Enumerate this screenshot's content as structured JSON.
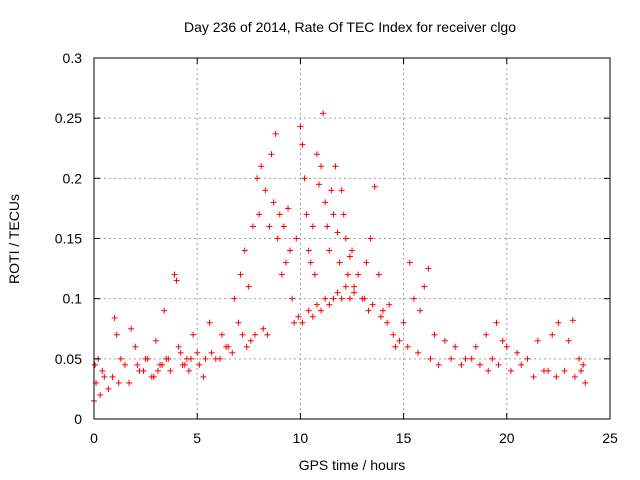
{
  "chart_data": {
    "type": "scatter",
    "title": "Day 236 of 2014, Rate Of TEC Index for receiver clgo",
    "xlabel": "GPS time / hours",
    "ylabel": "ROTI / TECUs",
    "xlim": [
      0,
      25
    ],
    "ylim": [
      0,
      0.3
    ],
    "grid": true,
    "marker": "+",
    "x_ticks": [
      0,
      5,
      10,
      15,
      20,
      25
    ],
    "x_tick_labels": [
      "0",
      "5",
      "10",
      "15",
      "20",
      "25"
    ],
    "y_ticks": [
      0,
      0.05,
      0.1,
      0.15,
      0.2,
      0.25,
      0.3
    ],
    "y_tick_labels": [
      "0",
      "0.05",
      "0.1",
      "0.15",
      "0.2",
      "0.25",
      "0.3"
    ],
    "series": [
      {
        "name": "ROTI",
        "color": "#ff0000",
        "x": [
          0.0,
          0.1,
          0.2,
          0.3,
          0.5,
          0.7,
          1.0,
          1.1,
          1.2,
          1.5,
          1.8,
          2.0,
          2.2,
          2.5,
          2.8,
          3.0,
          3.2,
          3.4,
          3.6,
          3.9,
          4.0,
          4.1,
          4.3,
          4.5,
          4.8,
          5.0,
          5.3,
          5.6,
          5.9,
          6.2,
          6.5,
          6.8,
          7.0,
          7.1,
          7.3,
          7.5,
          7.7,
          7.9,
          8.0,
          8.1,
          8.3,
          8.5,
          8.6,
          8.7,
          8.8,
          8.9,
          9.0,
          9.1,
          9.2,
          9.3,
          9.4,
          9.5,
          9.6,
          9.8,
          10.0,
          10.1,
          10.2,
          10.3,
          10.4,
          10.5,
          10.6,
          10.7,
          10.8,
          10.9,
          11.0,
          11.1,
          11.2,
          11.3,
          11.4,
          11.5,
          11.6,
          11.7,
          11.8,
          11.9,
          12.0,
          12.1,
          12.2,
          12.3,
          12.4,
          12.5,
          12.6,
          12.8,
          13.0,
          13.2,
          13.4,
          13.6,
          13.8,
          14.0,
          14.3,
          14.6,
          15.0,
          15.3,
          15.5,
          15.8,
          16.0,
          16.2,
          16.5,
          17.0,
          17.5,
          18.0,
          18.5,
          19.0,
          19.3,
          19.5,
          19.8,
          20.0,
          20.5,
          21.0,
          21.5,
          22.0,
          22.2,
          22.5,
          23.0,
          23.2,
          23.5,
          23.7,
          0.05,
          0.4,
          0.9,
          1.3,
          1.7,
          2.1,
          2.4,
          2.6,
          2.9,
          3.1,
          3.3,
          3.5,
          3.7,
          4.2,
          4.4,
          4.6,
          4.7,
          5.1,
          5.4,
          5.7,
          6.1,
          6.4,
          6.7,
          7.2,
          7.4,
          7.6,
          7.8,
          8.2,
          8.4,
          9.7,
          9.9,
          10.1,
          10.4,
          10.6,
          10.8,
          11.0,
          11.2,
          11.4,
          11.6,
          11.8,
          12.0,
          12.2,
          12.4,
          12.6,
          13.1,
          13.3,
          13.5,
          13.9,
          14.2,
          14.5,
          14.8,
          15.2,
          15.7,
          16.3,
          16.7,
          17.3,
          17.8,
          18.3,
          18.7,
          19.1,
          19.6,
          20.2,
          20.7,
          21.3,
          21.8,
          22.4,
          22.8,
          23.3,
          23.6,
          23.8
        ],
        "y": [
          0.015,
          0.03,
          0.05,
          0.02,
          0.035,
          0.025,
          0.084,
          0.07,
          0.03,
          0.045,
          0.075,
          0.06,
          0.04,
          0.05,
          0.035,
          0.065,
          0.045,
          0.09,
          0.05,
          0.12,
          0.115,
          0.06,
          0.045,
          0.05,
          0.07,
          0.055,
          0.035,
          0.08,
          0.05,
          0.07,
          0.06,
          0.1,
          0.08,
          0.12,
          0.14,
          0.11,
          0.16,
          0.2,
          0.17,
          0.21,
          0.19,
          0.16,
          0.22,
          0.18,
          0.237,
          0.15,
          0.17,
          0.12,
          0.16,
          0.13,
          0.175,
          0.14,
          0.1,
          0.15,
          0.243,
          0.228,
          0.2,
          0.17,
          0.14,
          0.13,
          0.16,
          0.12,
          0.22,
          0.195,
          0.21,
          0.254,
          0.18,
          0.16,
          0.14,
          0.19,
          0.17,
          0.21,
          0.155,
          0.13,
          0.19,
          0.17,
          0.15,
          0.12,
          0.135,
          0.14,
          0.11,
          0.12,
          0.1,
          0.13,
          0.15,
          0.193,
          0.12,
          0.09,
          0.095,
          0.06,
          0.08,
          0.13,
          0.1,
          0.09,
          0.11,
          0.125,
          0.07,
          0.065,
          0.06,
          0.05,
          0.06,
          0.07,
          0.05,
          0.08,
          0.065,
          0.06,
          0.055,
          0.05,
          0.065,
          0.04,
          0.07,
          0.08,
          0.065,
          0.082,
          0.05,
          0.045,
          0.045,
          0.04,
          0.035,
          0.05,
          0.03,
          0.045,
          0.04,
          0.05,
          0.035,
          0.04,
          0.045,
          0.05,
          0.04,
          0.055,
          0.045,
          0.04,
          0.05,
          0.045,
          0.05,
          0.055,
          0.05,
          0.06,
          0.055,
          0.07,
          0.06,
          0.065,
          0.07,
          0.075,
          0.07,
          0.08,
          0.085,
          0.08,
          0.09,
          0.085,
          0.095,
          0.09,
          0.1,
          0.095,
          0.1,
          0.105,
          0.1,
          0.11,
          0.1,
          0.105,
          0.1,
          0.09,
          0.095,
          0.085,
          0.08,
          0.07,
          0.065,
          0.06,
          0.055,
          0.05,
          0.045,
          0.05,
          0.045,
          0.05,
          0.045,
          0.04,
          0.045,
          0.04,
          0.045,
          0.035,
          0.04,
          0.035,
          0.04,
          0.035,
          0.04,
          0.03
        ]
      }
    ]
  }
}
